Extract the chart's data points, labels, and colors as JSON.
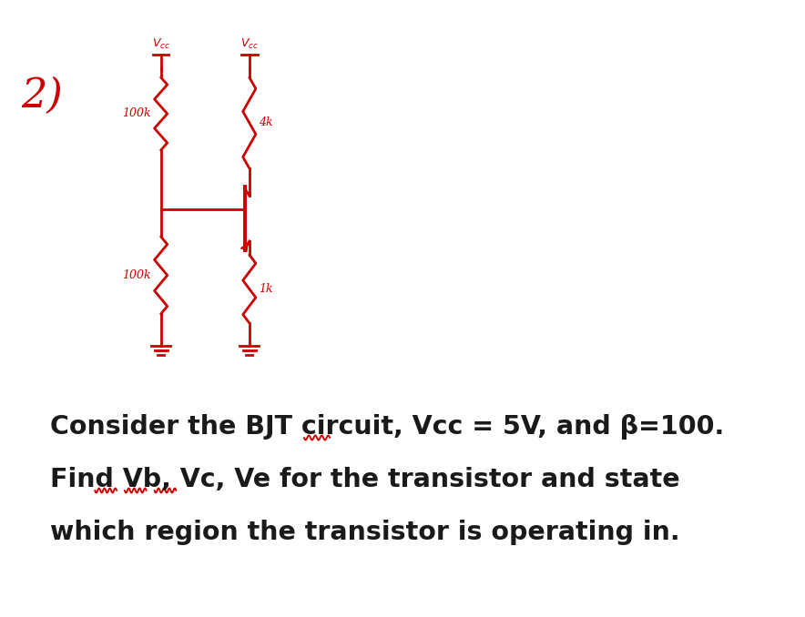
{
  "bg_color": "#ffffff",
  "red_color": "#cc0000",
  "text_color": "#1a1a1a",
  "figsize": [
    8.84,
    6.78
  ],
  "dpi": 100,
  "text_lines": [
    "Consider the BJT circuit, Vcc = 5V, and β=100.",
    "Find Vb, Vc, Ve for the transistor and state",
    "which region the transistor is operating in."
  ]
}
